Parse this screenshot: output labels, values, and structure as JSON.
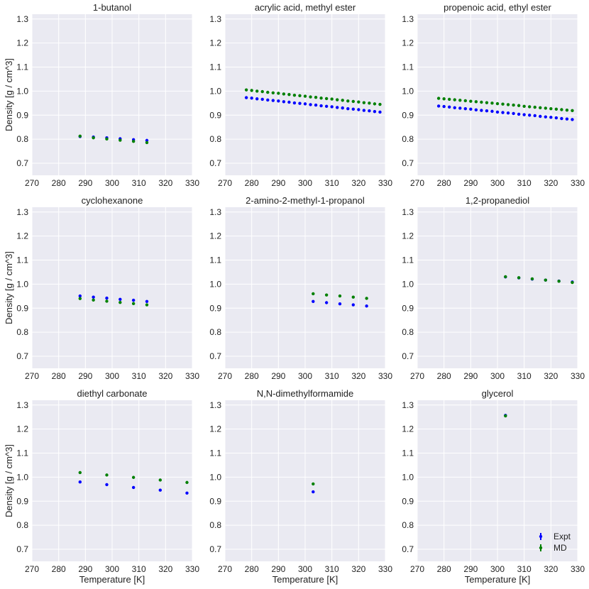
{
  "figure": {
    "colors": {
      "background": "#EAEAF2",
      "grid": "#FFFFFF",
      "expt": "#0000FF",
      "md": "#008000"
    }
  },
  "legend": {
    "expt_label": "Expt",
    "md_label": "MD",
    "location": "lower-right of glycerol panel"
  },
  "chart_data": [
    {
      "type": "scatter",
      "title": "1-butanol",
      "xlabel": "",
      "ylabel": "Density [g / cm^3]",
      "xlim": [
        270,
        330
      ],
      "ylim": [
        0.65,
        1.32
      ],
      "xticks": [
        270,
        280,
        290,
        300,
        310,
        320,
        330
      ],
      "yticks": [
        0.7,
        0.8,
        0.9,
        1.0,
        1.1,
        1.2,
        1.3
      ],
      "series": [
        {
          "name": "Expt",
          "x": [
            288,
            293,
            298,
            303,
            308,
            313
          ],
          "y": [
            0.811,
            0.809,
            0.806,
            0.802,
            0.798,
            0.795
          ]
        },
        {
          "name": "MD",
          "x": [
            288,
            293,
            298,
            303,
            308,
            313
          ],
          "y": [
            0.813,
            0.806,
            0.801,
            0.796,
            0.791,
            0.786
          ]
        }
      ]
    },
    {
      "type": "scatter",
      "title": "acrylic acid, methyl ester",
      "xlabel": "",
      "ylabel": "",
      "xlim": [
        270,
        330
      ],
      "ylim": [
        0.65,
        1.32
      ],
      "xticks": [
        270,
        280,
        290,
        300,
        310,
        320,
        330
      ],
      "yticks": [
        0.7,
        0.8,
        0.9,
        1.0,
        1.1,
        1.2,
        1.3
      ],
      "series": [
        {
          "name": "Expt",
          "x": [
            278,
            280,
            282,
            284,
            286,
            288,
            290,
            292,
            294,
            296,
            298,
            300,
            302,
            304,
            306,
            308,
            310,
            312,
            314,
            316,
            318,
            320,
            322,
            324,
            326,
            328
          ],
          "y": [
            0.973,
            0.971,
            0.968,
            0.966,
            0.963,
            0.961,
            0.959,
            0.956,
            0.954,
            0.951,
            0.949,
            0.947,
            0.944,
            0.942,
            0.939,
            0.937,
            0.935,
            0.932,
            0.93,
            0.927,
            0.925,
            0.923,
            0.92,
            0.918,
            0.915,
            0.913
          ]
        },
        {
          "name": "MD",
          "x": [
            278,
            280,
            282,
            284,
            286,
            288,
            290,
            292,
            294,
            296,
            298,
            300,
            302,
            304,
            306,
            308,
            310,
            312,
            314,
            316,
            318,
            320,
            322,
            324,
            326,
            328
          ],
          "y": [
            1.005,
            1.003,
            1.0,
            0.998,
            0.995,
            0.993,
            0.991,
            0.988,
            0.986,
            0.983,
            0.981,
            0.979,
            0.976,
            0.974,
            0.971,
            0.969,
            0.967,
            0.964,
            0.962,
            0.959,
            0.957,
            0.955,
            0.952,
            0.95,
            0.947,
            0.945
          ]
        }
      ]
    },
    {
      "type": "scatter",
      "title": "propenoic acid, ethyl ester",
      "xlabel": "",
      "ylabel": "",
      "xlim": [
        270,
        330
      ],
      "ylim": [
        0.65,
        1.32
      ],
      "xticks": [
        270,
        280,
        290,
        300,
        310,
        320,
        330
      ],
      "yticks": [
        0.7,
        0.8,
        0.9,
        1.0,
        1.1,
        1.2,
        1.3
      ],
      "series": [
        {
          "name": "Expt",
          "x": [
            278,
            280,
            282,
            284,
            286,
            288,
            290,
            292,
            294,
            296,
            298,
            300,
            302,
            304,
            306,
            308,
            310,
            312,
            314,
            316,
            318,
            320,
            322,
            324,
            326,
            328
          ],
          "y": [
            0.938,
            0.936,
            0.934,
            0.931,
            0.929,
            0.927,
            0.925,
            0.922,
            0.92,
            0.918,
            0.916,
            0.913,
            0.911,
            0.909,
            0.907,
            0.904,
            0.902,
            0.9,
            0.898,
            0.895,
            0.893,
            0.891,
            0.889,
            0.886,
            0.884,
            0.882
          ]
        },
        {
          "name": "MD",
          "x": [
            278,
            280,
            282,
            284,
            286,
            288,
            290,
            292,
            294,
            296,
            298,
            300,
            302,
            304,
            306,
            308,
            310,
            312,
            314,
            316,
            318,
            320,
            322,
            324,
            326,
            328
          ],
          "y": [
            0.97,
            0.968,
            0.966,
            0.964,
            0.962,
            0.96,
            0.958,
            0.956,
            0.954,
            0.952,
            0.95,
            0.948,
            0.946,
            0.944,
            0.942,
            0.94,
            0.937,
            0.935,
            0.933,
            0.931,
            0.929,
            0.927,
            0.925,
            0.923,
            0.921,
            0.919
          ]
        }
      ]
    },
    {
      "type": "scatter",
      "title": "cyclohexanone",
      "xlabel": "",
      "ylabel": "Density [g / cm^3]",
      "xlim": [
        270,
        330
      ],
      "ylim": [
        0.65,
        1.32
      ],
      "xticks": [
        270,
        280,
        290,
        300,
        310,
        320,
        330
      ],
      "yticks": [
        0.7,
        0.8,
        0.9,
        1.0,
        1.1,
        1.2,
        1.3
      ],
      "series": [
        {
          "name": "Expt",
          "x": [
            288,
            293,
            298,
            303,
            308,
            313
          ],
          "y": [
            0.951,
            0.946,
            0.942,
            0.937,
            0.933,
            0.928
          ]
        },
        {
          "name": "MD",
          "x": [
            288,
            293,
            298,
            303,
            308,
            313
          ],
          "y": [
            0.94,
            0.934,
            0.929,
            0.924,
            0.919,
            0.914
          ]
        }
      ]
    },
    {
      "type": "scatter",
      "title": "2-amino-2-methyl-1-propanol",
      "xlabel": "",
      "ylabel": "",
      "xlim": [
        270,
        330
      ],
      "ylim": [
        0.65,
        1.32
      ],
      "xticks": [
        270,
        280,
        290,
        300,
        310,
        320,
        330
      ],
      "yticks": [
        0.7,
        0.8,
        0.9,
        1.0,
        1.1,
        1.2,
        1.3
      ],
      "series": [
        {
          "name": "Expt",
          "x": [
            303,
            308,
            313,
            318,
            323
          ],
          "y": [
            0.928,
            0.923,
            0.918,
            0.914,
            0.909
          ]
        },
        {
          "name": "MD",
          "x": [
            303,
            308,
            313,
            318,
            323
          ],
          "y": [
            0.96,
            0.955,
            0.951,
            0.946,
            0.941
          ]
        }
      ]
    },
    {
      "type": "scatter",
      "title": "1,2-propanediol",
      "xlabel": "",
      "ylabel": "",
      "xlim": [
        270,
        330
      ],
      "ylim": [
        0.65,
        1.32
      ],
      "xticks": [
        270,
        280,
        290,
        300,
        310,
        320,
        330
      ],
      "yticks": [
        0.7,
        0.8,
        0.9,
        1.0,
        1.1,
        1.2,
        1.3
      ],
      "series": [
        {
          "name": "Expt",
          "x": [
            303,
            308,
            313,
            318,
            323,
            328
          ],
          "y": [
            1.03,
            1.026,
            1.021,
            1.017,
            1.013,
            1.009
          ]
        },
        {
          "name": "MD",
          "x": [
            303,
            308,
            313,
            318,
            323,
            328
          ],
          "y": [
            1.031,
            1.027,
            1.022,
            1.017,
            1.012,
            1.007
          ]
        }
      ]
    },
    {
      "type": "scatter",
      "title": "diethyl carbonate",
      "xlabel": "Temperature [K]",
      "ylabel": "Density [g / cm^3]",
      "xlim": [
        270,
        330
      ],
      "ylim": [
        0.65,
        1.32
      ],
      "xticks": [
        270,
        280,
        290,
        300,
        310,
        320,
        330
      ],
      "yticks": [
        0.7,
        0.8,
        0.9,
        1.0,
        1.1,
        1.2,
        1.3
      ],
      "series": [
        {
          "name": "Expt",
          "x": [
            288,
            298,
            308,
            318,
            328
          ],
          "y": [
            0.98,
            0.969,
            0.957,
            0.946,
            0.934
          ]
        },
        {
          "name": "MD",
          "x": [
            288,
            298,
            308,
            318,
            328
          ],
          "y": [
            1.019,
            1.009,
            0.999,
            0.988,
            0.978
          ]
        }
      ]
    },
    {
      "type": "scatter",
      "title": "N,N-dimethylformamide",
      "xlabel": "Temperature [K]",
      "ylabel": "",
      "xlim": [
        270,
        330
      ],
      "ylim": [
        0.65,
        1.32
      ],
      "xticks": [
        270,
        280,
        290,
        300,
        310,
        320,
        330
      ],
      "yticks": [
        0.7,
        0.8,
        0.9,
        1.0,
        1.1,
        1.2,
        1.3
      ],
      "series": [
        {
          "name": "Expt",
          "x": [
            303
          ],
          "y": [
            0.939
          ]
        },
        {
          "name": "MD",
          "x": [
            303
          ],
          "y": [
            0.972
          ]
        }
      ]
    },
    {
      "type": "scatter",
      "title": "glycerol",
      "xlabel": "Temperature [K]",
      "ylabel": "",
      "xlim": [
        270,
        330
      ],
      "ylim": [
        0.65,
        1.32
      ],
      "xticks": [
        270,
        280,
        290,
        300,
        310,
        320,
        330
      ],
      "yticks": [
        0.7,
        0.8,
        0.9,
        1.0,
        1.1,
        1.2,
        1.3
      ],
      "series": [
        {
          "name": "Expt",
          "x": [
            303
          ],
          "y": [
            1.257
          ]
        },
        {
          "name": "MD",
          "x": [
            303
          ],
          "y": [
            1.255
          ]
        }
      ]
    }
  ]
}
